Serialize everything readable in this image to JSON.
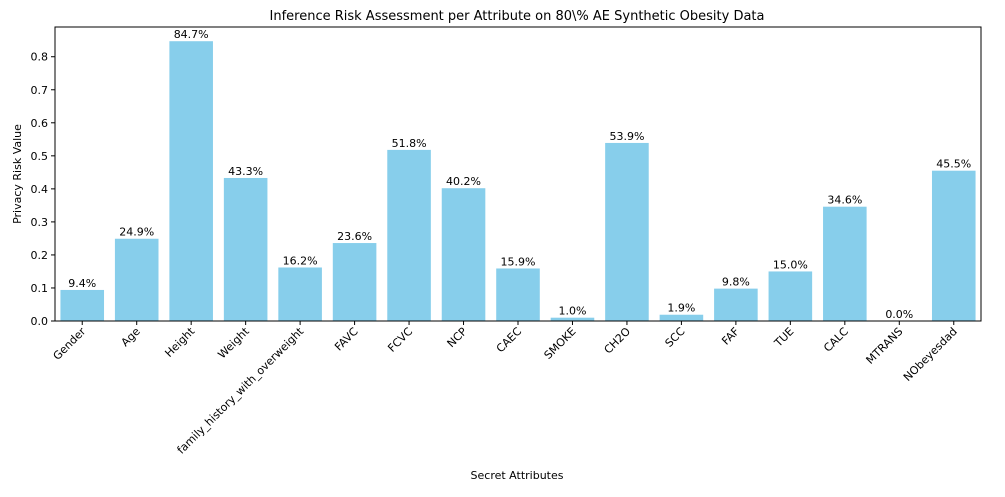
{
  "chart_data": {
    "type": "bar",
    "title": "Inference Risk Assessment per Attribute on 80\\% AE Synthetic Obesity Data",
    "xlabel": "Secret Attributes",
    "ylabel": "Privacy Risk Value",
    "categories": [
      "Gender",
      "Age",
      "Height",
      "Weight",
      "family_history_with_overweight",
      "FAVC",
      "FCVC",
      "NCP",
      "CAEC",
      "SMOKE",
      "CH2O",
      "SCC",
      "FAF",
      "TUE",
      "CALC",
      "MTRANS",
      "NObeyesdad"
    ],
    "values": [
      0.094,
      0.249,
      0.847,
      0.433,
      0.162,
      0.236,
      0.518,
      0.402,
      0.159,
      0.01,
      0.539,
      0.019,
      0.098,
      0.15,
      0.346,
      0.0,
      0.455
    ],
    "data_labels": [
      "9.4%",
      "24.9%",
      "84.7%",
      "43.3%",
      "16.2%",
      "23.6%",
      "51.8%",
      "40.2%",
      "15.9%",
      "1.0%",
      "53.9%",
      "1.9%",
      "9.8%",
      "15.0%",
      "34.6%",
      "0.0%",
      "45.5%"
    ],
    "y_ticks": [
      "0.0",
      "0.1",
      "0.2",
      "0.3",
      "0.4",
      "0.5",
      "0.6",
      "0.7",
      "0.8"
    ],
    "ylim": [
      0,
      0.89
    ],
    "bar_color": "#87ceeb",
    "grid": false,
    "legend": false
  }
}
